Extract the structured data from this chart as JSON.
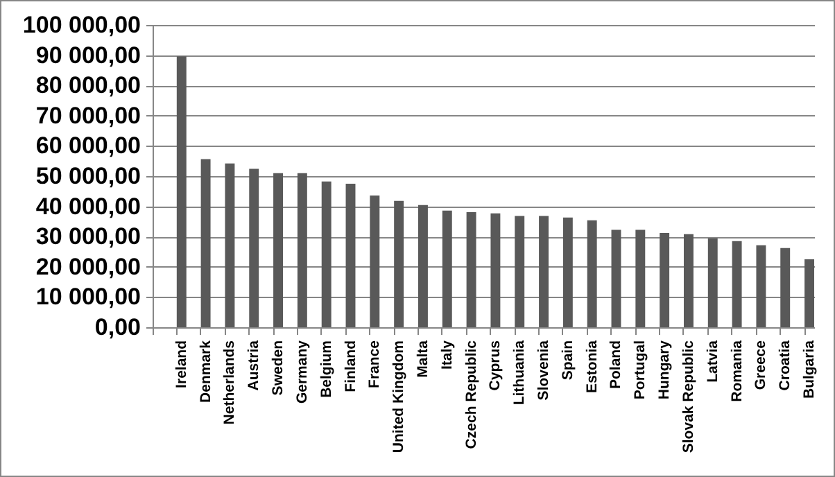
{
  "chart_data": {
    "type": "bar",
    "categories": [
      null,
      "Ireland",
      "Denmark",
      "Netherlands",
      "Austria",
      "Sweden",
      "Germany",
      "Belgium",
      "Finland",
      "France",
      "United Kingdom",
      "Malta",
      "Italy",
      "Czech Republic",
      "Cyprus",
      "Lithuania",
      "Slovenia",
      "Spain",
      "Estonia",
      "Poland",
      "Portugal",
      "Hungary",
      "Slovak Republic",
      "Latvia",
      "Romania",
      "Greece",
      "Croatia",
      "Bulgaria"
    ],
    "values": [
      null,
      89600,
      55600,
      54200,
      52400,
      51000,
      51000,
      48200,
      47500,
      43600,
      41800,
      40400,
      38600,
      38100,
      37700,
      36800,
      36800,
      36300,
      35400,
      32200,
      32200,
      31200,
      30800,
      29400,
      28500,
      27100,
      26200,
      22500
    ],
    "color": "#595959",
    "ylim": [
      0,
      100000
    ],
    "yticks": [
      {
        "value": 0,
        "label": "0,00"
      },
      {
        "value": 10000,
        "label": "10 000,00"
      },
      {
        "value": 20000,
        "label": "20 000,00"
      },
      {
        "value": 30000,
        "label": "30 000,00"
      },
      {
        "value": 40000,
        "label": "40 000,00"
      },
      {
        "value": 50000,
        "label": "50 000,00"
      },
      {
        "value": 60000,
        "label": "60 000,00"
      },
      {
        "value": 70000,
        "label": "70 000,00"
      },
      {
        "value": 80000,
        "label": "80 000,00"
      },
      {
        "value": 90000,
        "label": "90 000,00"
      },
      {
        "value": 100000,
        "label": "100 000,00"
      }
    ],
    "grid": "y"
  }
}
